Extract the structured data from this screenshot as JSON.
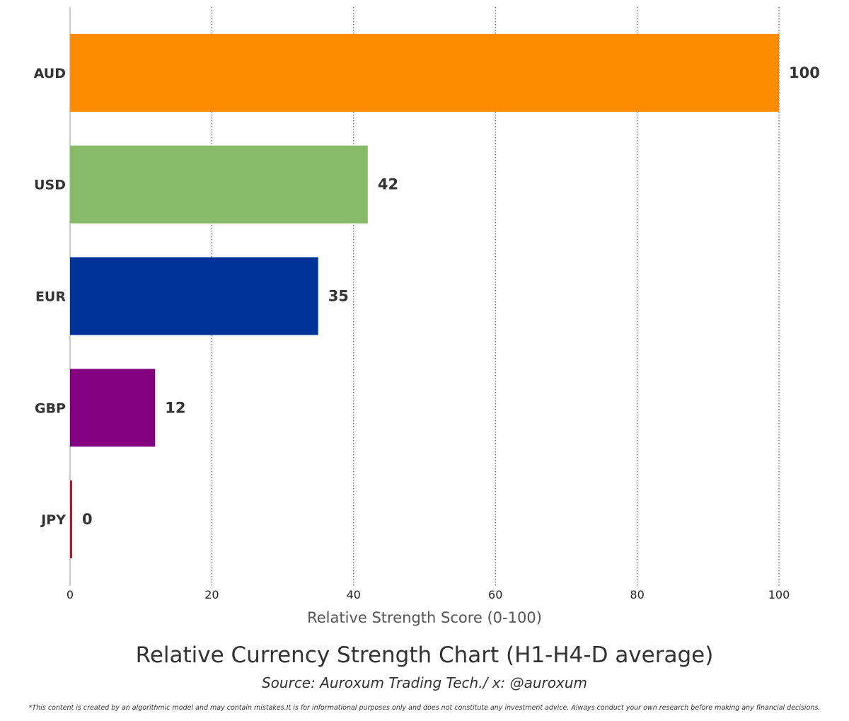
{
  "chart_data": {
    "type": "bar",
    "orientation": "horizontal",
    "categories": [
      "AUD",
      "USD",
      "EUR",
      "GBP",
      "JPY"
    ],
    "values": [
      100,
      42,
      35,
      12,
      0
    ],
    "data_labels": [
      "100",
      "42",
      "35",
      "12",
      "0"
    ],
    "colors": [
      "#FF8C00",
      "#87BB68",
      "#003399",
      "#820080",
      "#C8102E"
    ],
    "xlim": [
      0,
      100
    ],
    "xticks": [
      0,
      20,
      40,
      60,
      80,
      100
    ],
    "xtick_labels": [
      "0",
      "20",
      "40",
      "60",
      "80",
      "100"
    ],
    "xlabel": "Relative Strength Score (0-100)",
    "ylabel": "",
    "grid": "vertical dotted",
    "title": "Relative Currency Strength Chart (H1-H4-D average)",
    "subtitle": "Source: Auroxum Trading Tech./ x: @auroxum"
  },
  "footer": {
    "disclaimer": "*This content is created by an algorithmic model and may contain mistakes.It is for informational purposes only and does not constitute any investment advice. Always conduct your own research before making any financial decisions."
  }
}
